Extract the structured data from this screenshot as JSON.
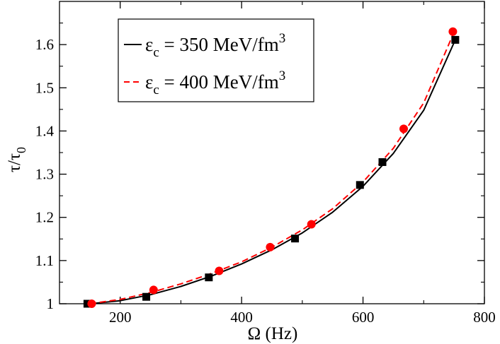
{
  "chart_data": {
    "type": "line",
    "title": "",
    "xlabel": "Ω (Hz)",
    "ylabel": "τ/τ",
    "ylabel_subscript": "0",
    "xlim": [
      100,
      800
    ],
    "ylim": [
      1.0,
      1.7
    ],
    "xticks": [
      {
        "value": 200,
        "label": "200"
      },
      {
        "value": 400,
        "label": "400"
      },
      {
        "value": 600,
        "label": "600"
      },
      {
        "value": 800,
        "label": "800"
      }
    ],
    "yticks": [
      {
        "value": 1.0,
        "label": "1"
      },
      {
        "value": 1.1,
        "label": "1.1"
      },
      {
        "value": 1.2,
        "label": "1.2"
      },
      {
        "value": 1.3,
        "label": "1.3"
      },
      {
        "value": 1.4,
        "label": "1.4"
      },
      {
        "value": 1.5,
        "label": "1.5"
      },
      {
        "value": 1.6,
        "label": "1.6"
      }
    ],
    "legend_position": "top-left",
    "series": [
      {
        "name": "εc = 350 MeV/fm3",
        "symbol": "ε",
        "subscript": "c",
        "value_text": " = 350 MeV/fm",
        "superscript": "3",
        "color": "#000000",
        "line_style": "solid",
        "marker": "square",
        "curve": {
          "x": [
            150,
            200,
            250,
            300,
            350,
            400,
            450,
            500,
            550,
            600,
            650,
            700,
            752
          ],
          "y": [
            1.0,
            1.007,
            1.021,
            1.04,
            1.064,
            1.092,
            1.125,
            1.164,
            1.212,
            1.272,
            1.348,
            1.448,
            1.611
          ]
        },
        "points": {
          "x": [
            146,
            243,
            346,
            488,
            595,
            632,
            752
          ],
          "y": [
            1.0,
            1.016,
            1.061,
            1.151,
            1.275,
            1.328,
            1.611
          ]
        }
      },
      {
        "name": "εc = 400 MeV/fm3",
        "symbol": "ε",
        "subscript": "c",
        "value_text": " = 400 MeV/fm",
        "superscript": "3",
        "color": "#ff0000",
        "line_style": "dashed",
        "marker": "circle",
        "curve": {
          "x": [
            150,
            200,
            250,
            300,
            350,
            400,
            450,
            500,
            550,
            600,
            650,
            700,
            750
          ],
          "y": [
            1.0,
            1.01,
            1.026,
            1.046,
            1.07,
            1.097,
            1.131,
            1.171,
            1.22,
            1.282,
            1.36,
            1.465,
            1.629
          ]
        },
        "points": {
          "x": [
            153,
            255,
            363,
            447,
            515,
            667,
            748
          ],
          "y": [
            1.0,
            1.032,
            1.076,
            1.131,
            1.184,
            1.405,
            1.63
          ]
        }
      }
    ]
  }
}
